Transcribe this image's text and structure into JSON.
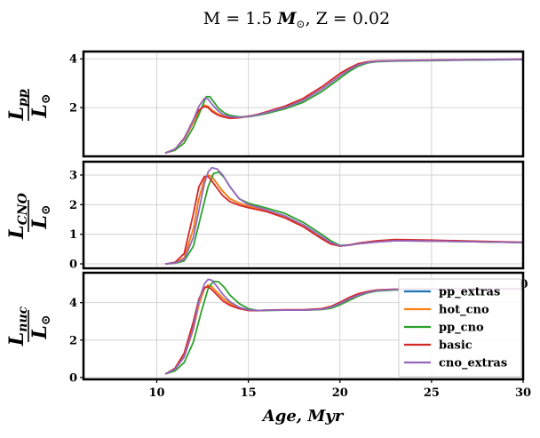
{
  "figure": {
    "title_parts": [
      "M = 1.5 ",
      "M",
      "⊙",
      ", Z = 0.02"
    ],
    "xlabel": "Age, Myr",
    "stray_label": "0"
  },
  "chart_data": {
    "type": "line",
    "xlim": [
      6,
      30
    ],
    "xticks": [
      10,
      15,
      20,
      25,
      30
    ],
    "grid": true,
    "legend_position": "bottom-right panel, upper right",
    "series_styles": [
      {
        "name": "pp_extras",
        "color": "#1f77b4"
      },
      {
        "name": "hot_cno",
        "color": "#ff7f0e"
      },
      {
        "name": "pp_cno",
        "color": "#2ca02c"
      },
      {
        "name": "basic",
        "color": "#d62728"
      },
      {
        "name": "cno_extras",
        "color": "#9467bd"
      }
    ],
    "panels": [
      {
        "ylabel_base": "L",
        "ylabel_sub": "pp",
        "ylabel_den": "L",
        "ylabel_den_sub": "⊙",
        "ylim": [
          0,
          4.3
        ],
        "yticks": [
          2,
          4
        ],
        "series": [
          {
            "name": "pp_extras",
            "x": [
              10.5,
              11,
              11.5,
              12,
              12.3,
              12.6,
              12.8,
              13.0,
              13.3,
              13.6,
              14,
              14.5,
              15,
              15.5,
              16,
              17,
              18,
              19,
              20,
              20.5,
              21,
              21.5,
              22,
              23,
              25,
              27,
              30
            ],
            "y": [
              0.15,
              0.3,
              0.7,
              1.4,
              1.85,
              2.1,
              2.05,
              1.9,
              1.75,
              1.65,
              1.6,
              1.6,
              1.65,
              1.7,
              1.8,
              2.0,
              2.3,
              2.75,
              3.3,
              3.55,
              3.75,
              3.85,
              3.9,
              3.92,
              3.94,
              3.96,
              3.98
            ]
          },
          {
            "name": "hot_cno",
            "x": [
              10.5,
              11,
              11.5,
              12,
              12.3,
              12.6,
              12.8,
              13.0,
              13.3,
              13.6,
              14,
              14.5,
              15,
              15.5,
              16,
              17,
              18,
              19,
              20,
              20.5,
              21,
              21.5,
              22,
              23,
              25,
              27,
              30
            ],
            "y": [
              0.15,
              0.3,
              0.7,
              1.4,
              1.85,
              2.1,
              2.05,
              1.9,
              1.75,
              1.65,
              1.6,
              1.6,
              1.65,
              1.7,
              1.8,
              2.0,
              2.3,
              2.75,
              3.3,
              3.55,
              3.75,
              3.85,
              3.9,
              3.92,
              3.94,
              3.96,
              3.98
            ]
          },
          {
            "name": "pp_cno",
            "x": [
              10.5,
              11,
              11.5,
              12,
              12.4,
              12.7,
              12.9,
              13.1,
              13.4,
              13.7,
              14,
              14.5,
              15,
              15.5,
              16,
              17,
              18,
              19,
              20,
              20.5,
              21,
              21.5,
              22,
              23,
              25,
              27,
              30
            ],
            "y": [
              0.15,
              0.25,
              0.55,
              1.2,
              1.9,
              2.45,
              2.45,
              2.25,
              1.95,
              1.78,
              1.68,
              1.62,
              1.62,
              1.68,
              1.76,
              1.95,
              2.22,
              2.65,
              3.2,
              3.48,
              3.7,
              3.83,
              3.88,
              3.91,
              3.93,
              3.95,
              3.97
            ]
          },
          {
            "name": "basic",
            "x": [
              10.5,
              11,
              11.5,
              12,
              12.3,
              12.6,
              12.8,
              13.0,
              13.3,
              13.6,
              14,
              14.5,
              15,
              15.5,
              16,
              17,
              18,
              19,
              20,
              20.5,
              21,
              21.5,
              22,
              23,
              25,
              27,
              30
            ],
            "y": [
              0.15,
              0.3,
              0.75,
              1.5,
              1.9,
              2.05,
              2.0,
              1.85,
              1.7,
              1.62,
              1.56,
              1.58,
              1.64,
              1.72,
              1.83,
              2.06,
              2.38,
              2.85,
              3.4,
              3.62,
              3.8,
              3.88,
              3.91,
              3.93,
              3.95,
              3.97,
              3.99
            ]
          },
          {
            "name": "cno_extras",
            "x": [
              10.5,
              11,
              11.5,
              12,
              12.3,
              12.6,
              12.8,
              13.0,
              13.3,
              13.6,
              14,
              14.5,
              15,
              15.5,
              16,
              17,
              18,
              19,
              20,
              20.5,
              21,
              21.5,
              22,
              23,
              25,
              27,
              30
            ],
            "y": [
              0.15,
              0.3,
              0.72,
              1.5,
              2.05,
              2.38,
              2.35,
              2.15,
              1.9,
              1.72,
              1.62,
              1.6,
              1.64,
              1.7,
              1.8,
              2.0,
              2.3,
              2.75,
              3.3,
              3.55,
              3.75,
              3.85,
              3.9,
              3.92,
              3.94,
              3.96,
              3.98
            ]
          }
        ]
      },
      {
        "ylabel_base": "L",
        "ylabel_sub": "CNO",
        "ylabel_den": "L",
        "ylabel_den_sub": "⊙",
        "ylim": [
          -0.15,
          3.45
        ],
        "yticks": [
          0,
          1,
          2,
          3
        ],
        "series": [
          {
            "name": "pp_extras",
            "x": [
              10.5,
              11,
              11.5,
              12,
              12.3,
              12.6,
              12.8,
              13.0,
              13.3,
              13.6,
              14,
              14.5,
              15,
              16,
              17,
              18,
              19,
              19.5,
              20,
              20.5,
              21,
              22,
              23,
              25,
              27,
              30
            ],
            "y": [
              0.0,
              0.03,
              0.2,
              1.2,
              2.2,
              2.85,
              3.0,
              2.95,
              2.7,
              2.45,
              2.2,
              2.05,
              1.95,
              1.8,
              1.6,
              1.3,
              0.9,
              0.7,
              0.6,
              0.63,
              0.68,
              0.74,
              0.78,
              0.77,
              0.75,
              0.72
            ]
          },
          {
            "name": "hot_cno",
            "x": [
              10.5,
              11,
              11.5,
              12,
              12.3,
              12.6,
              12.8,
              13.0,
              13.3,
              13.6,
              14,
              14.5,
              15,
              16,
              17,
              18,
              19,
              19.5,
              20,
              20.5,
              21,
              22,
              23,
              25,
              27,
              30
            ],
            "y": [
              0.0,
              0.03,
              0.2,
              1.2,
              2.2,
              2.85,
              3.0,
              2.95,
              2.7,
              2.45,
              2.2,
              2.05,
              1.95,
              1.8,
              1.6,
              1.3,
              0.9,
              0.7,
              0.6,
              0.63,
              0.68,
              0.74,
              0.78,
              0.77,
              0.75,
              0.72
            ]
          },
          {
            "name": "pp_cno",
            "x": [
              10.5,
              11,
              11.5,
              12,
              12.4,
              12.8,
              13.1,
              13.4,
              13.7,
              14,
              14.5,
              15,
              16,
              17,
              18,
              19,
              19.5,
              20,
              20.5,
              21,
              22,
              23,
              25,
              27,
              30
            ],
            "y": [
              0.0,
              0.02,
              0.1,
              0.6,
              1.6,
              2.6,
              3.05,
              3.1,
              2.9,
              2.6,
              2.2,
              2.05,
              1.88,
              1.7,
              1.4,
              1.0,
              0.78,
              0.62,
              0.64,
              0.7,
              0.76,
              0.8,
              0.78,
              0.75,
              0.72
            ]
          },
          {
            "name": "basic",
            "x": [
              10.5,
              11,
              11.5,
              12,
              12.3,
              12.6,
              12.8,
              13.0,
              13.3,
              13.6,
              14,
              14.5,
              15,
              16,
              17,
              18,
              19,
              19.5,
              20,
              20.5,
              21,
              22,
              23,
              25,
              27,
              30
            ],
            "y": [
              0.0,
              0.05,
              0.35,
              1.7,
              2.6,
              2.95,
              2.95,
              2.8,
              2.55,
              2.3,
              2.1,
              1.98,
              1.9,
              1.76,
              1.55,
              1.25,
              0.85,
              0.67,
              0.6,
              0.64,
              0.7,
              0.78,
              0.82,
              0.8,
              0.77,
              0.73
            ]
          },
          {
            "name": "cno_extras",
            "x": [
              10.5,
              11,
              11.5,
              12,
              12.3,
              12.6,
              12.8,
              13.0,
              13.3,
              13.6,
              14,
              14.5,
              15,
              16,
              17,
              18,
              19,
              19.5,
              20,
              20.5,
              21,
              22,
              23,
              25,
              27,
              30
            ],
            "y": [
              0.0,
              0.03,
              0.15,
              0.9,
              1.8,
              2.7,
              3.1,
              3.25,
              3.2,
              3.0,
              2.6,
              2.2,
              2.0,
              1.82,
              1.62,
              1.32,
              0.92,
              0.72,
              0.61,
              0.63,
              0.68,
              0.74,
              0.78,
              0.77,
              0.75,
              0.72
            ]
          }
        ]
      },
      {
        "ylabel_base": "L",
        "ylabel_sub": "nuc",
        "ylabel_den": "L",
        "ylabel_den_sub": "⊙",
        "ylim": [
          -0.1,
          5.6
        ],
        "yticks": [
          0,
          2,
          4
        ],
        "series": [
          {
            "name": "pp_extras",
            "x": [
              10.5,
              11,
              11.5,
              12,
              12.3,
              12.6,
              12.8,
              13.0,
              13.3,
              13.6,
              14,
              14.5,
              15,
              15.5,
              16,
              17,
              18,
              19,
              19.5,
              20,
              20.5,
              21,
              21.5,
              22,
              23,
              25,
              27,
              30
            ],
            "y": [
              0.2,
              0.45,
              1.1,
              2.6,
              3.9,
              4.75,
              4.95,
              4.85,
              4.55,
              4.25,
              3.95,
              3.7,
              3.6,
              3.58,
              3.6,
              3.6,
              3.6,
              3.65,
              3.75,
              3.95,
              4.2,
              4.4,
              4.55,
              4.65,
              4.7,
              4.72,
              4.73,
              4.74
            ]
          },
          {
            "name": "hot_cno",
            "x": [
              10.5,
              11,
              11.5,
              12,
              12.3,
              12.6,
              12.8,
              13.0,
              13.3,
              13.6,
              14,
              14.5,
              15,
              15.5,
              16,
              17,
              18,
              19,
              19.5,
              20,
              20.5,
              21,
              21.5,
              22,
              23,
              25,
              27,
              30
            ],
            "y": [
              0.2,
              0.45,
              1.1,
              2.6,
              3.9,
              4.75,
              4.95,
              4.85,
              4.55,
              4.25,
              3.95,
              3.7,
              3.6,
              3.58,
              3.6,
              3.6,
              3.6,
              3.65,
              3.75,
              3.95,
              4.2,
              4.4,
              4.55,
              4.65,
              4.7,
              4.72,
              4.73,
              4.74
            ]
          },
          {
            "name": "pp_cno",
            "x": [
              10.5,
              11,
              11.5,
              12,
              12.4,
              12.8,
              13.1,
              13.4,
              13.7,
              14,
              14.5,
              15,
              15.5,
              16,
              17,
              18,
              19,
              19.5,
              20,
              20.5,
              21,
              21.5,
              22,
              23,
              25,
              27,
              30
            ],
            "y": [
              0.2,
              0.35,
              0.8,
              1.9,
              3.4,
              4.75,
              5.15,
              5.1,
              4.8,
              4.4,
              3.95,
              3.68,
              3.58,
              3.58,
              3.6,
              3.6,
              3.63,
              3.7,
              3.88,
              4.12,
              4.35,
              4.52,
              4.62,
              4.68,
              4.71,
              4.72,
              4.73
            ]
          },
          {
            "name": "basic",
            "x": [
              10.5,
              11,
              11.5,
              12,
              12.3,
              12.6,
              12.8,
              13.0,
              13.3,
              13.6,
              14,
              14.5,
              15,
              15.5,
              16,
              17,
              18,
              19,
              19.5,
              20,
              20.5,
              21,
              21.5,
              22,
              23,
              25,
              27,
              30
            ],
            "y": [
              0.2,
              0.5,
              1.3,
              3.0,
              4.2,
              4.8,
              4.85,
              4.7,
              4.4,
              4.1,
              3.85,
              3.68,
              3.58,
              3.57,
              3.6,
              3.62,
              3.62,
              3.68,
              3.8,
              4.02,
              4.28,
              4.48,
              4.6,
              4.68,
              4.72,
              4.73,
              4.74,
              4.75
            ]
          },
          {
            "name": "cno_extras",
            "x": [
              10.5,
              11,
              11.5,
              12,
              12.3,
              12.6,
              12.8,
              13.0,
              13.3,
              13.6,
              14,
              14.5,
              15,
              15.5,
              16,
              17,
              18,
              19,
              19.5,
              20,
              20.5,
              21,
              21.5,
              22,
              23,
              25,
              27,
              30
            ],
            "y": [
              0.2,
              0.45,
              1.1,
              2.7,
              4.1,
              5.0,
              5.25,
              5.2,
              4.85,
              4.45,
              4.05,
              3.75,
              3.62,
              3.58,
              3.6,
              3.6,
              3.6,
              3.65,
              3.75,
              3.95,
              4.2,
              4.4,
              4.55,
              4.65,
              4.7,
              4.72,
              4.73,
              4.74
            ]
          }
        ]
      }
    ]
  }
}
